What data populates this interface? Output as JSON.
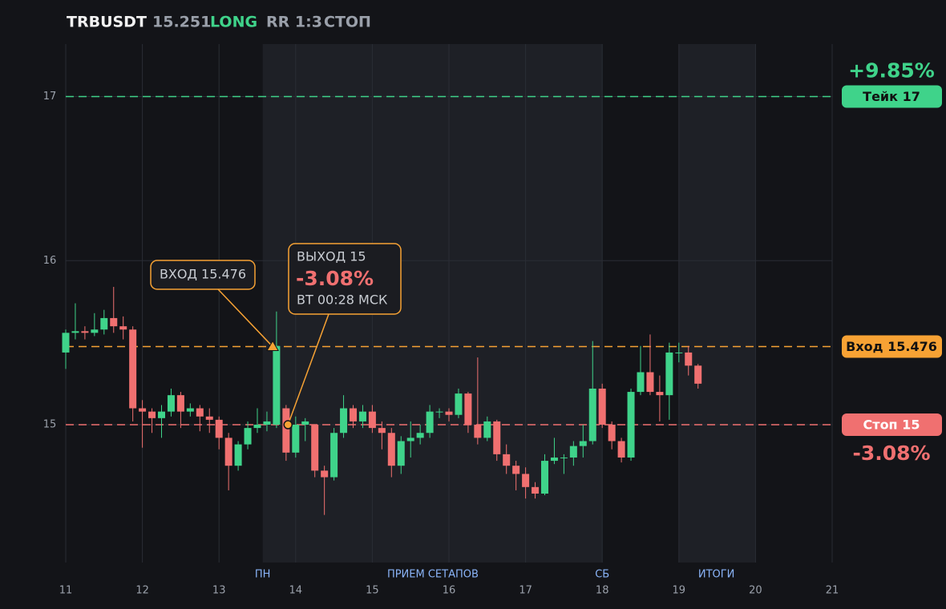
{
  "header": {
    "symbol": "TRBUSDT",
    "price": "15.251",
    "side": "LONG",
    "rr": "RR 1:3",
    "status": "СТОП"
  },
  "chart_data": {
    "type": "candlestick",
    "xlim": [
      11,
      21
    ],
    "xticks": [
      11,
      12,
      13,
      14,
      15,
      16,
      17,
      18,
      19,
      20,
      21
    ],
    "ylim": [
      14.16,
      17.32
    ],
    "yticks": [
      15,
      16,
      17
    ],
    "grid": true,
    "up_color": "#3fd38a",
    "down_color": "#f07070",
    "sessions": [
      {
        "start": 13.57,
        "end": 18
      },
      {
        "start": 19,
        "end": 20
      }
    ],
    "session_labels": [
      {
        "label": "ПН",
        "x": 13.57
      },
      {
        "label": "ПРИЕМ СЕТАПОВ",
        "x": 15.79
      },
      {
        "label": "СБ",
        "x": 18
      },
      {
        "label": "ИТОГИ",
        "x": 19.49
      }
    ],
    "x": [
      11,
      11.125,
      11.25,
      11.375,
      11.5,
      11.625,
      11.75,
      11.875,
      12,
      12.125,
      12.25,
      12.375,
      12.5,
      12.625,
      12.75,
      12.875,
      13,
      13.125,
      13.25,
      13.375,
      13.5,
      13.625,
      13.75,
      13.875,
      14,
      14.125,
      14.25,
      14.375,
      14.5,
      14.625,
      14.75,
      14.875,
      15,
      15.125,
      15.25,
      15.375,
      15.5,
      15.625,
      15.75,
      15.875,
      16,
      16.125,
      16.25,
      16.375,
      16.5,
      16.625,
      16.75,
      16.875,
      17,
      17.125,
      17.25,
      17.375,
      17.5,
      17.625,
      17.75,
      17.875,
      18,
      18.125,
      18.25,
      18.375,
      18.5,
      18.625,
      18.75,
      18.875,
      19,
      19.125,
      19.25
    ],
    "open": [
      15.44,
      15.56,
      15.57,
      15.56,
      15.58,
      15.65,
      15.6,
      15.58,
      15.1,
      15.08,
      15.04,
      15.08,
      15.18,
      15.08,
      15.1,
      15.05,
      15.03,
      14.92,
      14.75,
      14.88,
      14.98,
      15.0,
      15.0,
      15.1,
      14.83,
      15.0,
      15.0,
      14.72,
      14.68,
      14.95,
      15.1,
      15.02,
      15.08,
      14.98,
      14.95,
      14.75,
      14.9,
      14.92,
      14.95,
      15.08,
      15.08,
      15.06,
      15.19,
      15.0,
      14.92,
      15.02,
      14.82,
      14.75,
      14.7,
      14.62,
      14.58,
      14.78,
      14.8,
      14.8,
      14.87,
      14.9,
      15.22,
      15.0,
      14.9,
      14.8,
      15.2,
      15.32,
      15.2,
      15.18,
      15.44,
      15.44,
      15.36
    ],
    "high": [
      15.58,
      15.74,
      15.6,
      15.68,
      15.7,
      15.84,
      15.66,
      15.6,
      15.15,
      15.1,
      15.12,
      15.22,
      15.2,
      15.13,
      15.12,
      15.1,
      15.05,
      14.95,
      14.9,
      15.02,
      15.1,
      15.08,
      15.69,
      15.12,
      15.05,
      15.04,
      15.0,
      14.75,
      14.98,
      15.18,
      15.12,
      15.12,
      15.12,
      15.02,
      14.98,
      14.93,
      15.02,
      15.0,
      15.12,
      15.1,
      15.1,
      15.22,
      15.2,
      15.41,
      15.05,
      15.03,
      14.88,
      14.78,
      14.74,
      14.65,
      14.82,
      14.92,
      14.82,
      14.9,
      15.0,
      15.51,
      15.25,
      15.02,
      14.92,
      15.22,
      15.48,
      15.55,
      15.3,
      15.5,
      15.5,
      15.48,
      15.37
    ],
    "low": [
      15.34,
      15.52,
      15.52,
      15.54,
      15.55,
      15.56,
      15.52,
      15.02,
      14.86,
      14.95,
      14.92,
      15.05,
      14.98,
      15.05,
      14.96,
      14.95,
      14.85,
      14.6,
      14.72,
      14.85,
      14.95,
      14.96,
      14.98,
      14.78,
      14.8,
      14.9,
      14.68,
      14.45,
      14.66,
      14.92,
      14.98,
      14.98,
      14.95,
      14.85,
      14.68,
      14.7,
      14.8,
      14.88,
      14.92,
      15.04,
      15.02,
      15.04,
      14.95,
      14.88,
      14.9,
      14.78,
      14.7,
      14.6,
      14.55,
      14.55,
      14.57,
      14.76,
      14.7,
      14.75,
      14.8,
      14.88,
      14.98,
      14.85,
      14.77,
      14.78,
      15.18,
      15.18,
      15.02,
      15.03,
      15.38,
      15.3,
      15.22
    ],
    "close": [
      15.56,
      15.57,
      15.56,
      15.58,
      15.65,
      15.6,
      15.58,
      15.1,
      15.08,
      15.04,
      15.08,
      15.18,
      15.08,
      15.1,
      15.05,
      15.03,
      14.92,
      14.75,
      14.88,
      14.98,
      15.0,
      15.02,
      15.48,
      14.83,
      15.0,
      15.02,
      14.72,
      14.68,
      14.95,
      15.1,
      15.02,
      15.08,
      14.98,
      14.95,
      14.75,
      14.9,
      14.92,
      14.95,
      15.08,
      15.08,
      15.06,
      15.19,
      15.0,
      14.92,
      15.02,
      14.82,
      14.75,
      14.7,
      14.62,
      14.58,
      14.78,
      14.8,
      14.8,
      14.87,
      14.9,
      15.22,
      15.0,
      14.9,
      14.8,
      15.2,
      15.32,
      15.2,
      15.18,
      15.44,
      15.44,
      15.36,
      15.25
    ],
    "levels": [
      {
        "value": 17,
        "label": "Тейк 17",
        "color": "#3fd38a",
        "change_label": "+9.85%"
      },
      {
        "value": 15.476,
        "label": "Вход 15.476",
        "color": "#f7a234"
      },
      {
        "value": 15,
        "label": "Стоп 15",
        "color": "#f07070",
        "change_label": "-3.08%"
      }
    ],
    "entry_marker": {
      "label": "ВХОД 15.476",
      "x": 13.7,
      "y": 15.476
    },
    "exit_marker": {
      "title": "ВЫХОД 15",
      "change": "-3.08%",
      "time": "ВТ 00:28 МСК",
      "x": 13.9,
      "y": 15
    }
  }
}
